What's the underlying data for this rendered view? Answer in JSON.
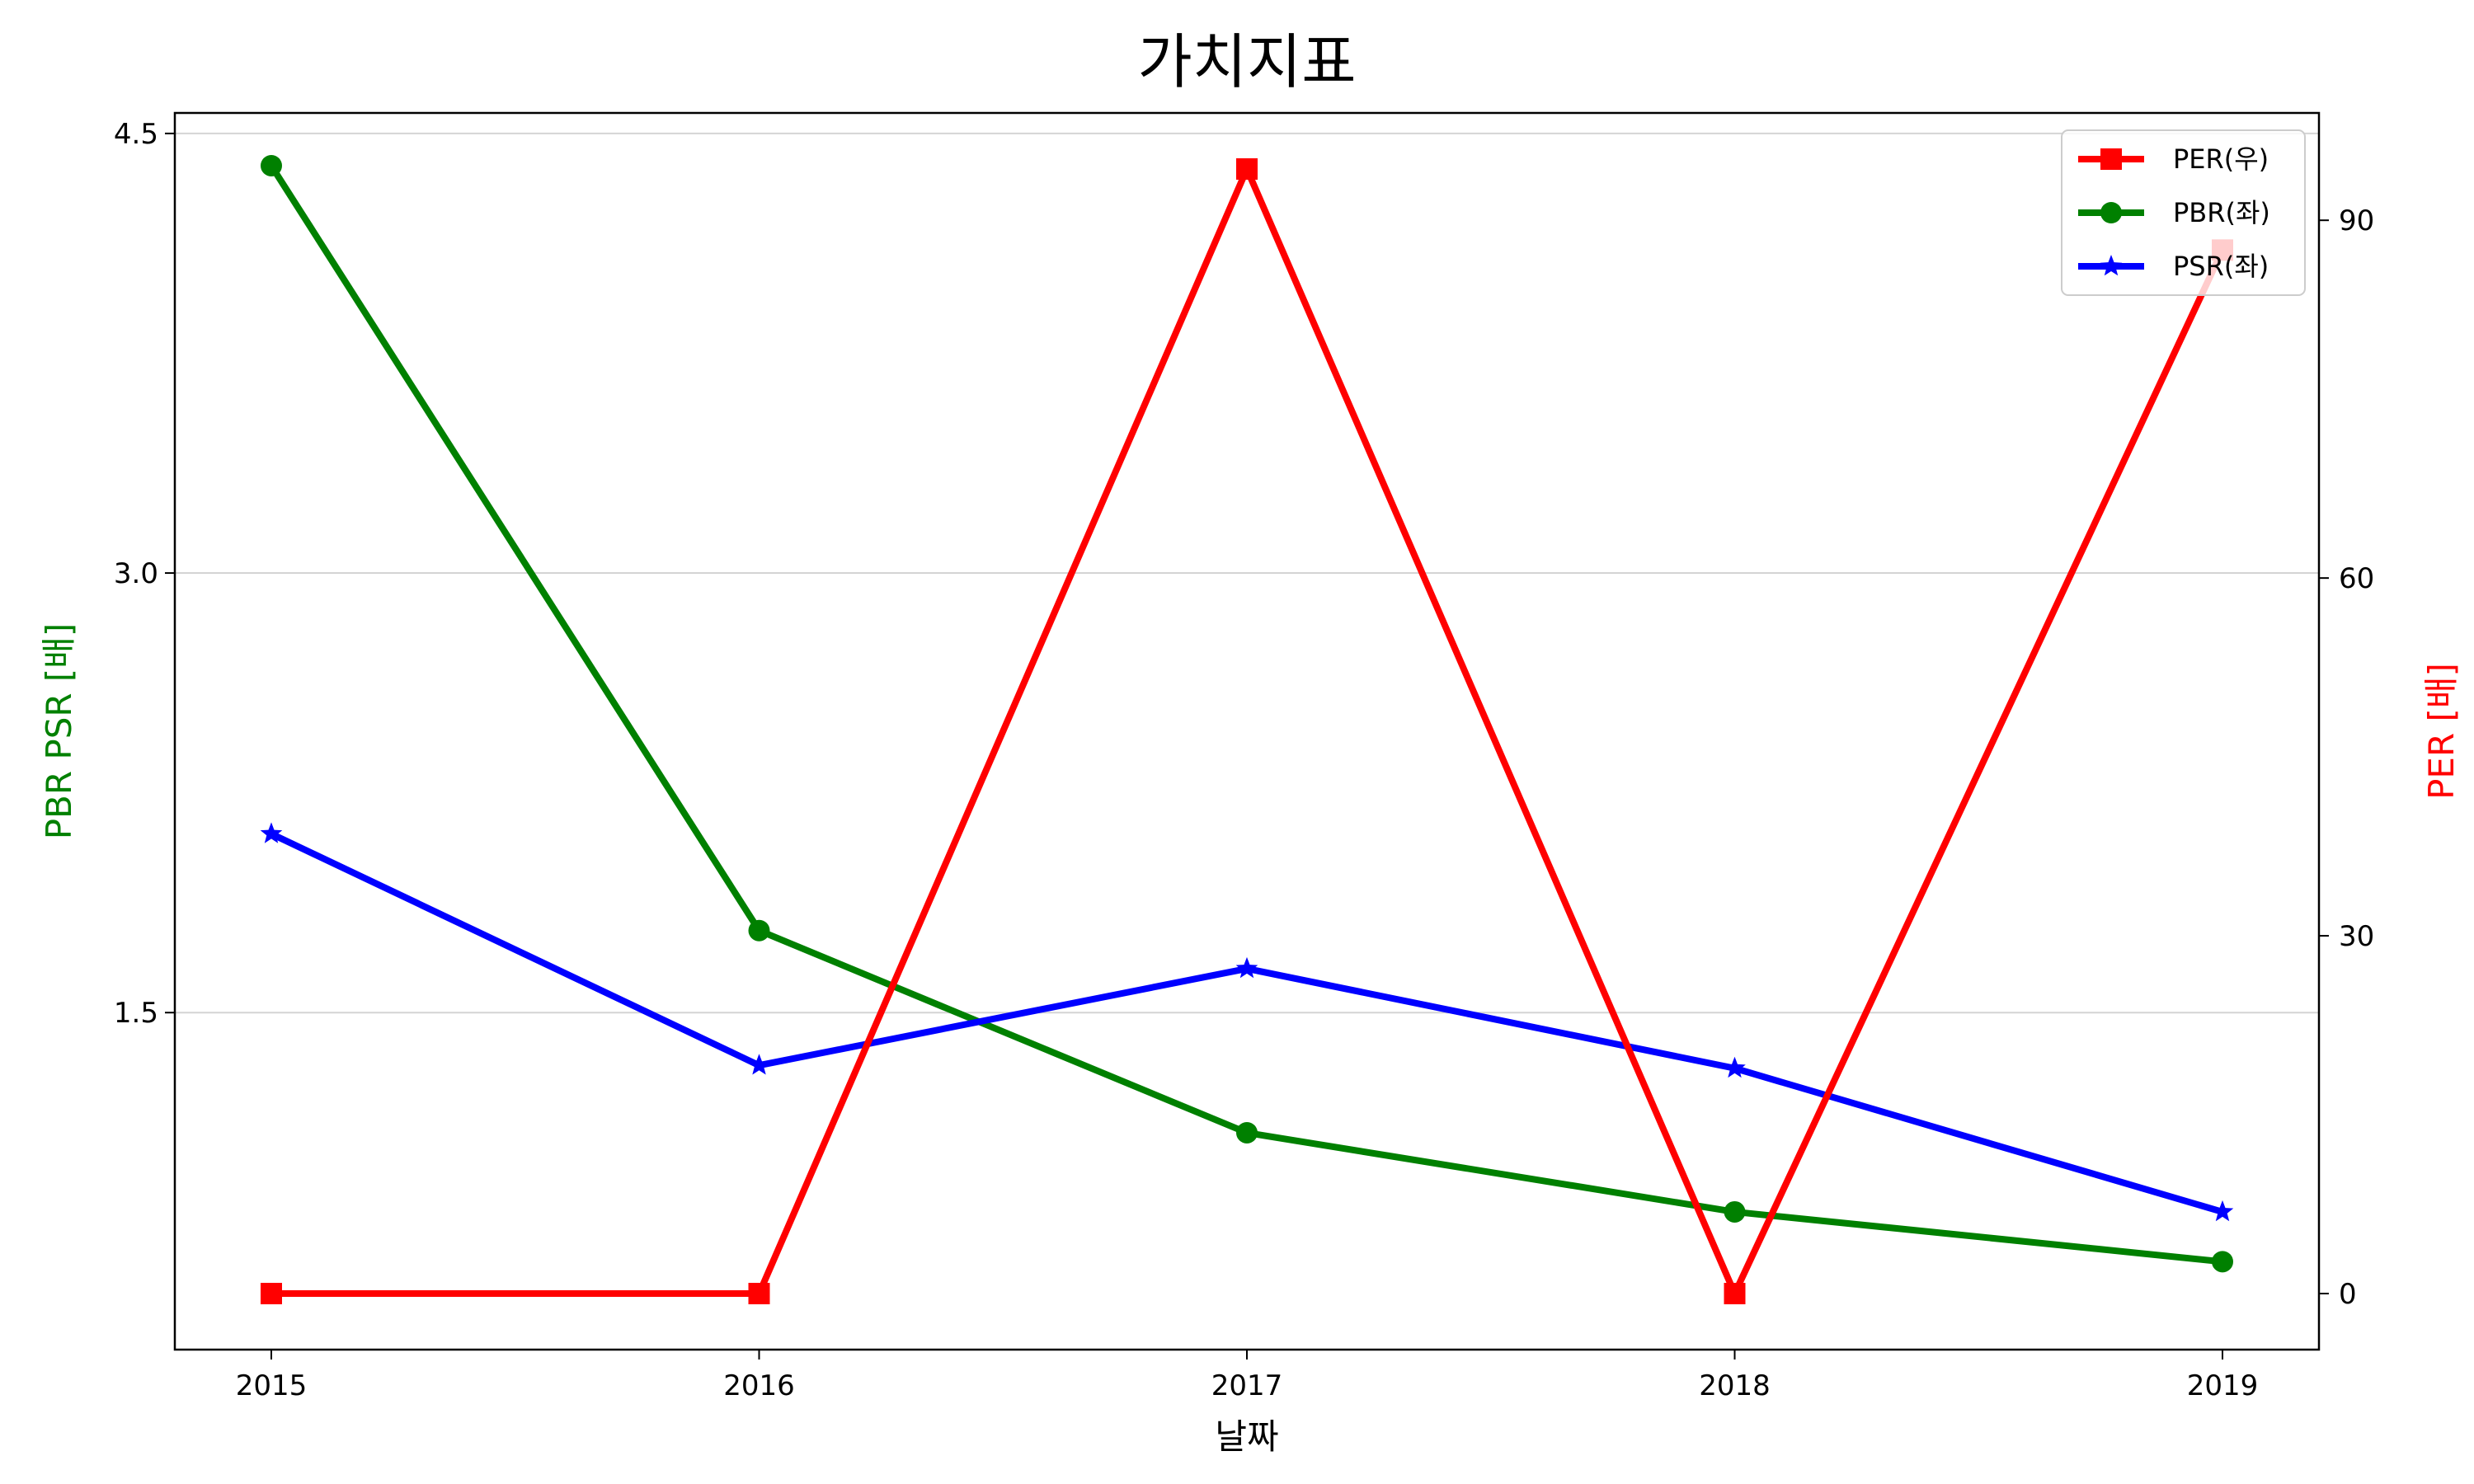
{
  "chart_data": {
    "type": "line",
    "title": "가치지표",
    "xlabel": "날짜",
    "ylabel_left": "PBR PSR [배]",
    "ylabel_right": "PER [배]",
    "categories": [
      "2015",
      "2016",
      "2017",
      "2018",
      "2019"
    ],
    "left_axis": {
      "ylim": [
        0.35,
        4.57
      ],
      "ticks": [
        "1.5",
        "3.0",
        "4.5"
      ],
      "tick_values": [
        1.5,
        3.0,
        4.5
      ]
    },
    "right_axis": {
      "ylim": [
        -4.7,
        99
      ],
      "ticks": [
        "0",
        "30",
        "60",
        "90"
      ],
      "tick_values": [
        0,
        30,
        60,
        90
      ]
    },
    "grid": "horizontal (left axis)",
    "legend_position": "top-right",
    "series": [
      {
        "name": "PER(우)",
        "axis": "right",
        "color": "#ff0000",
        "marker": "square",
        "values": [
          0,
          0,
          94.3,
          0,
          87.5
        ]
      },
      {
        "name": "PBR(좌)",
        "axis": "left",
        "color": "#008000",
        "marker": "circle",
        "values": [
          4.39,
          1.78,
          1.09,
          0.82,
          0.65
        ]
      },
      {
        "name": "PSR(좌)",
        "axis": "left",
        "color": "#0000ff",
        "marker": "star",
        "values": [
          2.11,
          1.32,
          1.65,
          1.31,
          0.82
        ]
      }
    ]
  }
}
